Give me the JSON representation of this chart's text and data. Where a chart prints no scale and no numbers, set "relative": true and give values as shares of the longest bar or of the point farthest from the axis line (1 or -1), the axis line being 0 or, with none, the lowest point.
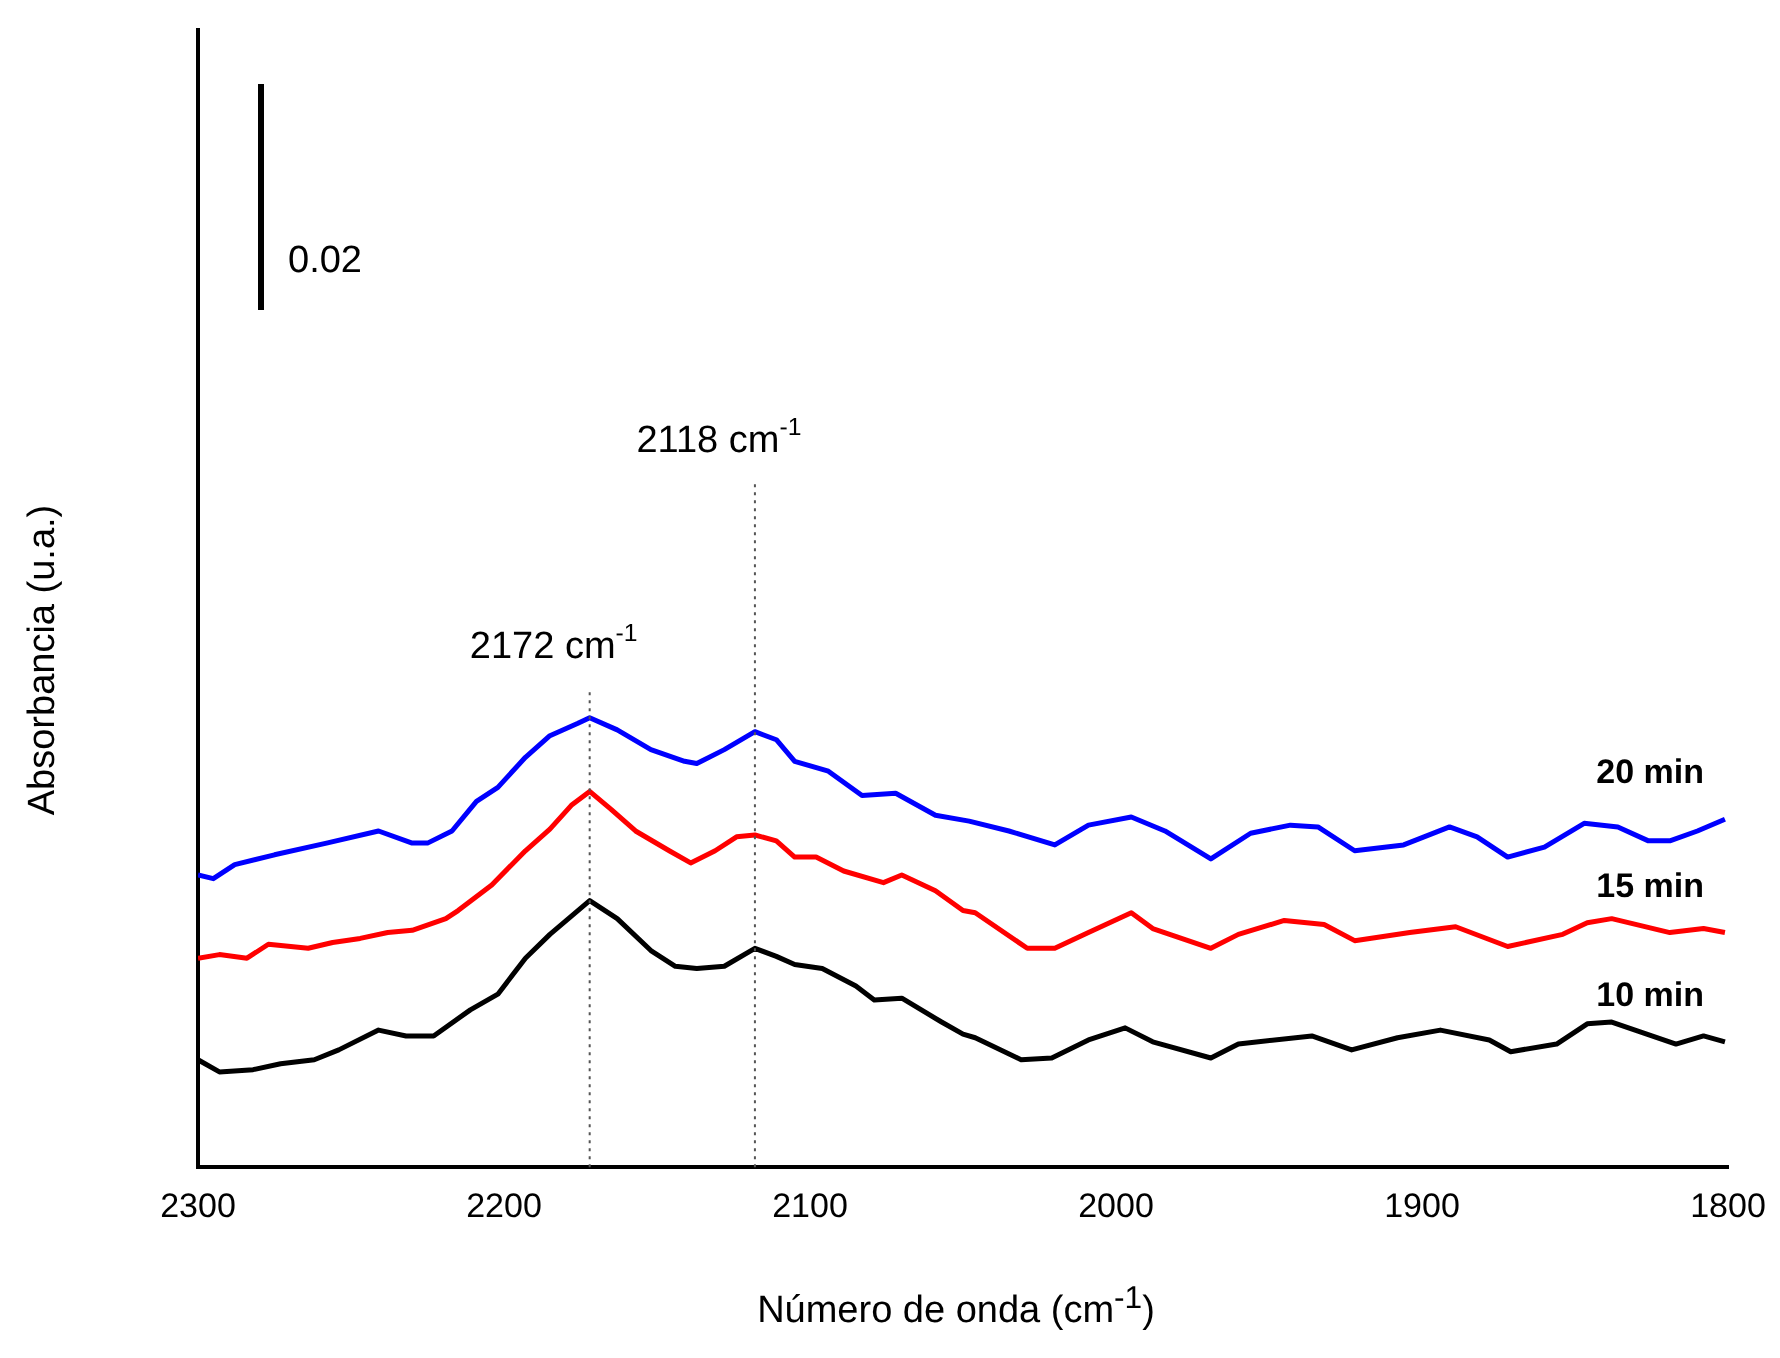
{
  "chart_data": {
    "type": "line",
    "relative": true,
    "marker": "none",
    "line_style": "solid",
    "xlabel": "Número de onda (cm$^{-1}$)",
    "ylabel": "Absorbancia (u.a.)",
    "xlim": [
      2300,
      1800
    ],
    "xticks": [
      2300,
      2200,
      2100,
      2000,
      1900,
      1800
    ],
    "annotations": [
      "0.02"
    ],
    "ref_lines": [
      {
        "axis": "x",
        "value": 2172,
        "label": "2172 cm$^{-1}$",
        "color": "#555555",
        "line_style": "dotted"
      },
      {
        "axis": "x",
        "value": 2118,
        "label": "2118 cm$^{-1}$",
        "color": "#555555",
        "line_style": "dotted"
      }
    ],
    "series": [
      {
        "name": "10 min",
        "color": "#000000",
        "x": [
          2300,
          2293,
          2282,
          2273,
          2262,
          2254,
          2241,
          2232,
          2223,
          2211,
          2202,
          2193,
          2185,
          2172,
          2163,
          2152,
          2144,
          2137,
          2128,
          2118,
          2111,
          2105,
          2096,
          2085,
          2079,
          2070,
          2057,
          2050,
          2046,
          2031,
          2021,
          2009,
          1997,
          1988,
          1969,
          1960,
          1936,
          1923,
          1908,
          1894,
          1878,
          1871,
          1856,
          1846,
          1838,
          1817,
          1808,
          1801
        ],
        "values": [
          0.239,
          0.212,
          0.217,
          0.23,
          0.239,
          0.261,
          0.305,
          0.292,
          0.292,
          0.35,
          0.385,
          0.465,
          0.518,
          0.593,
          0.553,
          0.482,
          0.447,
          0.442,
          0.447,
          0.487,
          0.469,
          0.451,
          0.442,
          0.403,
          0.372,
          0.376,
          0.323,
          0.296,
          0.288,
          0.239,
          0.243,
          0.283,
          0.31,
          0.279,
          0.243,
          0.274,
          0.292,
          0.261,
          0.288,
          0.305,
          0.283,
          0.257,
          0.274,
          0.319,
          0.323,
          0.274,
          0.292,
          0.279
        ]
      },
      {
        "name": "15 min",
        "color": "#ff0000",
        "x": [
          2300,
          2293,
          2284,
          2277,
          2264,
          2256,
          2247,
          2238,
          2230,
          2219,
          2215,
          2204,
          2193,
          2185,
          2178,
          2172,
          2165,
          2157,
          2146,
          2139,
          2131,
          2124,
          2118,
          2111,
          2105,
          2098,
          2089,
          2076,
          2070,
          2059,
          2050,
          2046,
          2029,
          2020,
          2009,
          1995,
          1988,
          1969,
          1960,
          1945,
          1932,
          1922,
          1904,
          1889,
          1872,
          1854,
          1846,
          1838,
          1819,
          1808,
          1801
        ],
        "values": [
          0.465,
          0.473,
          0.465,
          0.496,
          0.487,
          0.5,
          0.509,
          0.522,
          0.527,
          0.553,
          0.571,
          0.628,
          0.704,
          0.752,
          0.805,
          0.836,
          0.796,
          0.748,
          0.704,
          0.677,
          0.704,
          0.735,
          0.739,
          0.726,
          0.69,
          0.69,
          0.659,
          0.633,
          0.65,
          0.615,
          0.571,
          0.566,
          0.487,
          0.487,
          0.522,
          0.566,
          0.531,
          0.487,
          0.518,
          0.549,
          0.54,
          0.504,
          0.522,
          0.535,
          0.491,
          0.518,
          0.544,
          0.553,
          0.522,
          0.531,
          0.522
        ]
      },
      {
        "name": "20 min",
        "color": "#0000ff",
        "x": [
          2300,
          2295,
          2288,
          2275,
          2258,
          2241,
          2230,
          2225,
          2217,
          2209,
          2202,
          2193,
          2185,
          2176,
          2172,
          2163,
          2152,
          2141,
          2137,
          2128,
          2118,
          2111,
          2105,
          2094,
          2083,
          2072,
          2059,
          2048,
          2035,
          2020,
          2009,
          1995,
          1984,
          1969,
          1956,
          1943,
          1934,
          1922,
          1906,
          1891,
          1882,
          1872,
          1860,
          1847,
          1836,
          1826,
          1819,
          1810,
          1801
        ],
        "values": [
          0.65,
          0.642,
          0.673,
          0.695,
          0.721,
          0.748,
          0.721,
          0.721,
          0.748,
          0.814,
          0.845,
          0.912,
          0.96,
          0.987,
          1,
          0.973,
          0.929,
          0.903,
          0.898,
          0.929,
          0.969,
          0.951,
          0.903,
          0.881,
          0.827,
          0.832,
          0.783,
          0.77,
          0.748,
          0.717,
          0.761,
          0.779,
          0.748,
          0.686,
          0.743,
          0.761,
          0.757,
          0.704,
          0.717,
          0.757,
          0.735,
          0.69,
          0.712,
          0.765,
          0.757,
          0.726,
          0.726,
          0.748,
          0.774
        ]
      }
    ]
  }
}
